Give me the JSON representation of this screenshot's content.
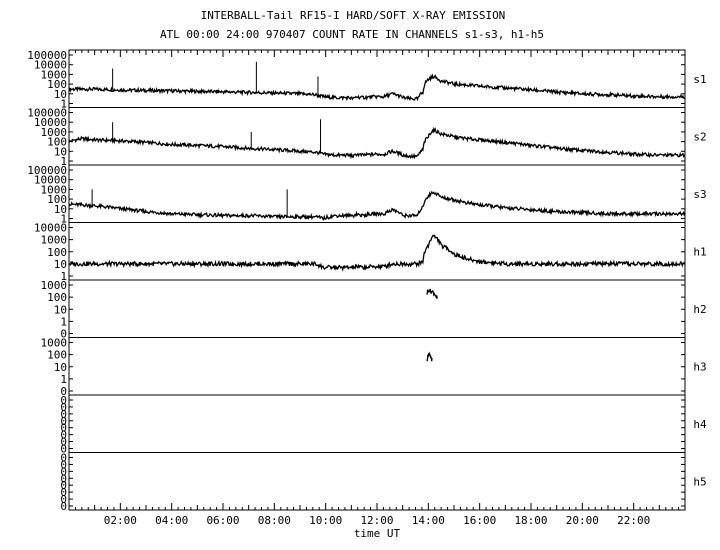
{
  "chart_data": {
    "type": "line",
    "title": "INTERBALL-Tail RF15-I HARD/SOFT X-RAY EMISSION",
    "subtitle": "ATL 00:00 24:00 970407  COUNT RATE IN CHANNELS s1-s3, h1-h5",
    "xlabel": "time UT",
    "x_unit": "hours UT",
    "xlim": [
      0,
      24
    ],
    "x_ticks": [
      "02:00",
      "04:00",
      "06:00",
      "08:00",
      "10:00",
      "12:00",
      "14:00",
      "16:00",
      "18:00",
      "20:00",
      "22:00"
    ],
    "y_scale": "log",
    "grid": false,
    "panels": [
      {
        "name": "s1",
        "y_ticks": [
          "100000",
          "10000",
          "1000",
          "100",
          "10",
          "1"
        ],
        "series": [
          {
            "x": [
              0.0,
              1.0,
              2.0,
              3.0,
              4.0,
              5.0,
              6.0,
              7.0,
              8.0,
              9.0,
              9.6,
              9.9,
              10.4,
              10.9,
              11.1,
              11.2,
              11.4,
              11.9,
              12.3,
              12.6,
              13.0,
              13.3,
              13.6,
              13.8,
              14.0,
              14.2,
              14.5,
              15.0,
              15.5,
              16.0,
              17.0,
              18.0,
              19.0,
              20.0,
              21.0,
              22.0,
              23.0,
              24.0
            ],
            "y": [
              30,
              30,
              25,
              22,
              20,
              18,
              16,
              14,
              12,
              10,
              8,
              5,
              4,
              4,
              3,
              5,
              4,
              5,
              5,
              10,
              4,
              3,
              3,
              15,
              300,
              600,
              200,
              100,
              80,
              60,
              40,
              25,
              15,
              10,
              8,
              6,
              5,
              5
            ]
          }
        ],
        "spikes": [
          {
            "x": 1.7,
            "y": 4000
          },
          {
            "x": 7.3,
            "y": 20000
          },
          {
            "x": 9.7,
            "y": 600
          }
        ]
      },
      {
        "name": "s2",
        "y_ticks": [
          "100000",
          "10000",
          "1000",
          "100",
          "10",
          "1"
        ],
        "series": [
          {
            "x": [
              0.0,
              0.5,
              1.0,
              2.0,
              3.0,
              4.0,
              5.0,
              6.0,
              7.0,
              8.0,
              9.0,
              9.6,
              9.9,
              10.4,
              10.9,
              11.1,
              11.2,
              11.4,
              11.9,
              12.3,
              12.6,
              13.0,
              13.3,
              13.6,
              13.8,
              14.0,
              14.2,
              14.5,
              15.0,
              15.5,
              16.0,
              17.0,
              18.0,
              19.0,
              20.0,
              21.0,
              22.0,
              23.0,
              24.0
            ],
            "y": [
              100,
              200,
              150,
              120,
              80,
              50,
              40,
              30,
              20,
              15,
              10,
              8,
              5,
              4,
              4,
              3,
              5,
              4,
              5,
              5,
              10,
              4,
              3,
              3,
              15,
              300,
              1500,
              600,
              300,
              200,
              150,
              80,
              40,
              20,
              12,
              8,
              5,
              4,
              4
            ]
          }
        ],
        "spikes": [
          {
            "x": 1.7,
            "y": 10000
          },
          {
            "x": 7.1,
            "y": 1000
          },
          {
            "x": 9.8,
            "y": 20000
          }
        ]
      },
      {
        "name": "s3",
        "y_ticks": [
          "100000",
          "10000",
          "1000",
          "100",
          "10",
          "1"
        ],
        "series": [
          {
            "x": [
              0.0,
              1.0,
              2.0,
              3.0,
              4.0,
              5.0,
              6.0,
              7.0,
              8.0,
              9.0,
              9.6,
              9.9,
              10.4,
              10.9,
              11.1,
              11.2,
              11.4,
              11.9,
              12.3,
              12.6,
              13.0,
              13.3,
              13.6,
              13.8,
              14.0,
              14.2,
              14.5,
              15.0,
              15.5,
              16.0,
              17.0,
              18.0,
              19.0,
              20.0,
              21.0,
              22.0,
              23.0,
              24.0
            ],
            "y": [
              30,
              20,
              10,
              5,
              3,
              2.5,
              2,
              2,
              1.5,
              1.5,
              1.5,
              1,
              2,
              2,
              2,
              3,
              2,
              3,
              3,
              8,
              2,
              2,
              2,
              15,
              200,
              500,
              150,
              80,
              40,
              25,
              12,
              8,
              5,
              4,
              3,
              3,
              3,
              3
            ]
          }
        ],
        "spikes": [
          {
            "x": 0.9,
            "y": 1000
          },
          {
            "x": 8.5,
            "y": 1000
          }
        ]
      },
      {
        "name": "h1",
        "y_ticks": [
          "10000",
          "1000",
          "100",
          "10",
          "1"
        ],
        "series": [
          {
            "x": [
              0.0,
              2.0,
              4.0,
              6.0,
              8.0,
              9.6,
              9.9,
              10.4,
              10.9,
              11.1,
              11.2,
              11.4,
              11.9,
              12.3,
              12.6,
              13.0,
              13.3,
              13.6,
              13.8,
              14.0,
              14.2,
              14.5,
              15.0,
              15.5,
              16.0,
              17.0,
              18.0,
              20.0,
              22.0,
              24.0
            ],
            "y": [
              10,
              10,
              10,
              10,
              10,
              10,
              5,
              5,
              5,
              5,
              6,
              5,
              6,
              6,
              10,
              10,
              10,
              10,
              15,
              300,
              2000,
              300,
              60,
              25,
              15,
              10,
              10,
              10,
              10,
              10
            ]
          }
        ],
        "spikes": []
      },
      {
        "name": "h2",
        "y_ticks": [
          "1000",
          "100",
          "10",
          "1",
          "0"
        ],
        "series": [
          {
            "x": [
              13.95,
              14.0,
              14.1,
              14.2,
              14.3,
              14.35
            ],
            "y": [
              200,
              400,
              300,
              250,
              120,
              60
            ]
          }
        ],
        "spikes": []
      },
      {
        "name": "h3",
        "y_ticks": [
          "1000",
          "100",
          "10",
          "1",
          "0"
        ],
        "series": [
          {
            "x": [
              13.95,
              14.0,
              14.05,
              14.1,
              14.15
            ],
            "y": [
              40,
              100,
              80,
              60,
              30
            ]
          }
        ],
        "spikes": []
      },
      {
        "name": "h4",
        "y_ticks": [
          "0",
          "0",
          "0",
          "0",
          "0",
          "0",
          "0",
          "0"
        ],
        "series": [],
        "spikes": []
      },
      {
        "name": "h5",
        "y_ticks": [
          "0",
          "0",
          "0",
          "0",
          "0",
          "0",
          "0",
          "0"
        ],
        "series": [],
        "spikes": []
      }
    ]
  }
}
